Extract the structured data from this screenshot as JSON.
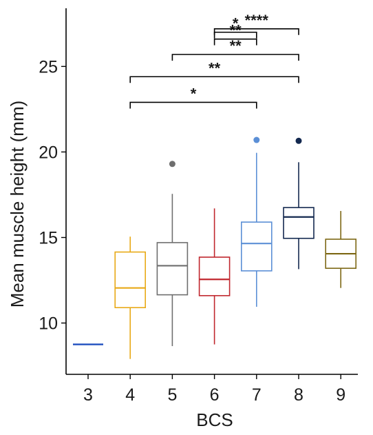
{
  "chart_data": {
    "type": "box",
    "xlabel": "BCS",
    "ylabel": "Mean muscle height (mm)",
    "categories": [
      "3",
      "4",
      "5",
      "6",
      "7",
      "8",
      "9"
    ],
    "ylim": [
      7.0,
      28.4
    ],
    "yticks": [
      10,
      15,
      20,
      25
    ],
    "grid": false,
    "boxes": [
      {
        "category": "3",
        "min": 8.75,
        "q1": 8.75,
        "median": 8.75,
        "q3": 8.75,
        "max": 8.75,
        "outliers": [],
        "color": "#1f4fbf"
      },
      {
        "category": "4",
        "min": 7.9,
        "q1": 10.9,
        "median": 12.05,
        "q3": 14.15,
        "max": 15.05,
        "outliers": [],
        "color": "#e8a916"
      },
      {
        "category": "5",
        "min": 8.65,
        "q1": 11.65,
        "median": 13.35,
        "q3": 14.7,
        "max": 17.55,
        "outliers": [
          19.3
        ],
        "color": "#6e6e6e"
      },
      {
        "category": "6",
        "min": 8.75,
        "q1": 11.6,
        "median": 12.55,
        "q3": 13.85,
        "max": 16.7,
        "outliers": [],
        "color": "#c0262d"
      },
      {
        "category": "7",
        "min": 10.95,
        "q1": 13.05,
        "median": 14.65,
        "q3": 15.9,
        "max": 19.95,
        "outliers": [
          20.7
        ],
        "color": "#5b8fd6"
      },
      {
        "category": "8",
        "min": 13.15,
        "q1": 14.95,
        "median": 16.2,
        "q3": 16.75,
        "max": 19.4,
        "outliers": [
          20.65
        ],
        "color": "#13284f"
      },
      {
        "category": "9",
        "min": 12.05,
        "q1": 13.2,
        "median": 14.05,
        "q3": 14.9,
        "max": 16.55,
        "outliers": [],
        "color": "#7d6714"
      }
    ],
    "significance": [
      {
        "from": "4",
        "to": "7",
        "y": 22.9,
        "label": "*"
      },
      {
        "from": "4",
        "to": "8",
        "y": 24.4,
        "label": "**"
      },
      {
        "from": "5",
        "to": "8",
        "y": 25.7,
        "label": "**"
      },
      {
        "from": "6",
        "to": "7",
        "y": 26.6,
        "label": "**"
      },
      {
        "from": "6",
        "to": "7",
        "y": 27.0,
        "label": "*"
      },
      {
        "from": "6",
        "to": "8",
        "y": 27.2,
        "label": "****"
      }
    ]
  }
}
